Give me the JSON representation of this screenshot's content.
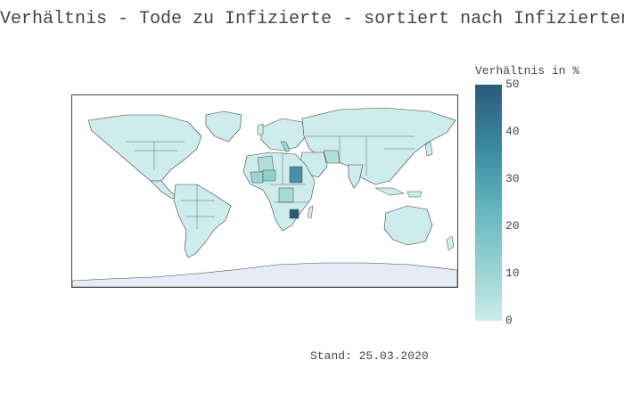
{
  "title": "Verhältnis - Tode zu Infizierte - sortiert nach Infizierten",
  "colorbar": {
    "title": "Verhältnis in %",
    "ticks": [
      "50",
      "40",
      "30",
      "20",
      "10",
      "0"
    ],
    "range": [
      0,
      50
    ],
    "colors": {
      "low": "#cdeceb",
      "high": "#2a5c7a"
    }
  },
  "footnote": "Stand: 25.03.2020",
  "map": {
    "projection": "equirectangular",
    "land_default_color": "#cdeceb",
    "antarctica_color": "#e5ecf6",
    "border_color": "#444444",
    "highlighted_regions": [
      {
        "name": "Sudan",
        "value": 30
      },
      {
        "name": "Zimbabwe",
        "value": 50
      },
      {
        "name": "Niger",
        "value": 15
      },
      {
        "name": "Mali",
        "value": 14
      },
      {
        "name": "Congo DR",
        "value": 12
      },
      {
        "name": "Algeria",
        "value": 10
      },
      {
        "name": "Iran",
        "value": 8
      },
      {
        "name": "Italy",
        "value": 10
      }
    ]
  }
}
